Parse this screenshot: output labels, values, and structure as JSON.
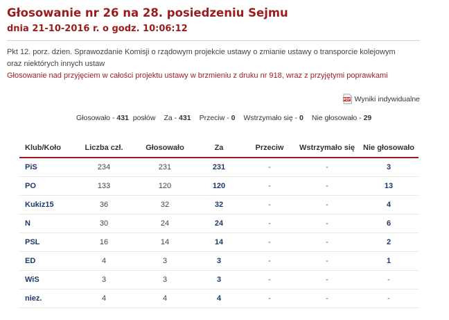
{
  "header": {
    "title": "Głosowanie nr 26 na 28. posiedzeniu Sejmu",
    "subtitle": "dnia 21-10-2016 r. o godz. 10:06:12"
  },
  "topic": "Pkt 12. porz. dzien. Sprawozdanie Komisji o rządowym projekcie ustawy o zmianie ustawy o transporcie kolejowym oraz niektórych innych ustaw",
  "subject": "Głosowanie nad przyjęciem w całości projektu ustawy w brzmieniu z druku nr 918, wraz z przyjętymi poprawkami",
  "results_link": {
    "label": "Wyniki indywidualne",
    "icon": "pdf-icon",
    "icon_text": "PDF"
  },
  "summary": {
    "voted_label": "Głosowało - ",
    "voted_value": "431",
    "voted_unit": "posłów",
    "for_label": "Za - ",
    "for_value": "431",
    "against_label": "Przeciw - ",
    "against_value": "0",
    "abstain_label": "Wstrzymało się - ",
    "abstain_value": "0",
    "absent_label": "Nie głosowało - ",
    "absent_value": "29"
  },
  "table": {
    "headers": [
      "Klub/Koło",
      "Liczba czł.",
      "Głosowało",
      "Za",
      "Przeciw",
      "Wstrzymało się",
      "Nie głosowało"
    ],
    "rows": [
      {
        "club": "PiS",
        "members": "234",
        "voted": "231",
        "for": "231",
        "against": "-",
        "abstain": "-",
        "absent": "3"
      },
      {
        "club": "PO",
        "members": "133",
        "voted": "120",
        "for": "120",
        "against": "-",
        "abstain": "-",
        "absent": "13"
      },
      {
        "club": "Kukiz15",
        "members": "36",
        "voted": "32",
        "for": "32",
        "against": "-",
        "abstain": "-",
        "absent": "4"
      },
      {
        "club": "N",
        "members": "30",
        "voted": "24",
        "for": "24",
        "against": "-",
        "abstain": "-",
        "absent": "6"
      },
      {
        "club": "PSL",
        "members": "16",
        "voted": "14",
        "for": "14",
        "against": "-",
        "abstain": "-",
        "absent": "2"
      },
      {
        "club": "ED",
        "members": "4",
        "voted": "3",
        "for": "3",
        "against": "-",
        "abstain": "-",
        "absent": "1"
      },
      {
        "club": "WiS",
        "members": "3",
        "voted": "3",
        "for": "3",
        "against": "-",
        "abstain": "-",
        "absent": "-"
      },
      {
        "club": "niez.",
        "members": "4",
        "voted": "4",
        "for": "4",
        "against": "-",
        "abstain": "-",
        "absent": "-"
      }
    ]
  },
  "colors": {
    "accent": "#9b1c1c",
    "link": "#1a3a6b"
  }
}
